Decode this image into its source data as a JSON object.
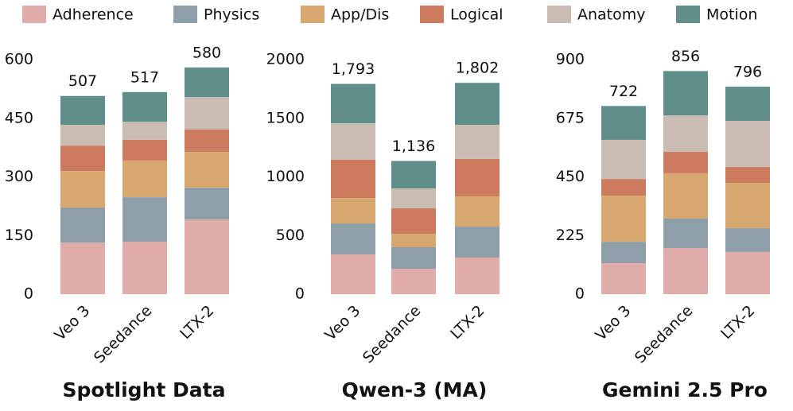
{
  "legend": {
    "names": [
      "Adherence",
      "Physics",
      "App/Dis",
      "Logical",
      "Anatomy",
      "Motion"
    ],
    "colors": [
      "#dfaca9",
      "#8f9faa",
      "#d6a86f",
      "#cd7b5f",
      "#c9bdb3",
      "#5f8f88"
    ]
  },
  "chart_data": [
    {
      "type": "bar",
      "stacked": true,
      "title": "Spotlight Data",
      "categories": [
        "Veo 3",
        "Seedance",
        "LTX-2"
      ],
      "series": [
        {
          "values": [
            132,
            134,
            191
          ]
        },
        {
          "values": [
            90,
            114,
            82
          ]
        },
        {
          "values": [
            93,
            94,
            91
          ]
        },
        {
          "values": [
            65,
            53,
            57
          ]
        },
        {
          "values": [
            53,
            46,
            83
          ]
        },
        {
          "values": [
            74,
            76,
            76
          ]
        }
      ],
      "totals": [
        507,
        517,
        580
      ],
      "ylim": [
        0,
        600
      ],
      "yticks": [
        0,
        150,
        300,
        450,
        600
      ]
    },
    {
      "type": "bar",
      "stacked": true,
      "title": "Qwen-3 (MA)",
      "categories": [
        "Veo 3",
        "Seedance",
        "LTX-2"
      ],
      "series": [
        {
          "values": [
            339,
            217,
            312
          ]
        },
        {
          "values": [
            264,
            183,
            264
          ]
        },
        {
          "values": [
            217,
            115,
            258
          ]
        },
        {
          "values": [
            326,
            217,
            319
          ]
        },
        {
          "values": [
            312,
            170,
            291
          ]
        },
        {
          "values": [
            335,
            234,
            358
          ]
        }
      ],
      "totals": [
        1793,
        1136,
        1802
      ],
      "total_labels": [
        "1,793",
        "1,136",
        "1,802"
      ],
      "ylim": [
        0,
        2000
      ],
      "yticks": [
        0,
        500,
        1000,
        1500,
        2000
      ]
    },
    {
      "type": "bar",
      "stacked": true,
      "title": "Gemini 2.5 Pro",
      "categories": [
        "Veo 3",
        "Seedance",
        "LTX-2"
      ],
      "series": [
        {
          "values": [
            119,
            177,
            162
          ]
        },
        {
          "values": [
            82,
            113,
            91
          ]
        },
        {
          "values": [
            177,
            174,
            174
          ]
        },
        {
          "values": [
            64,
            82,
            61
          ]
        },
        {
          "values": [
            150,
            140,
            177
          ]
        },
        {
          "values": [
            130,
            170,
            131
          ]
        }
      ],
      "totals": [
        722,
        856,
        796
      ],
      "ylim": [
        0,
        900
      ],
      "yticks": [
        0,
        225,
        450,
        675,
        900
      ]
    }
  ]
}
